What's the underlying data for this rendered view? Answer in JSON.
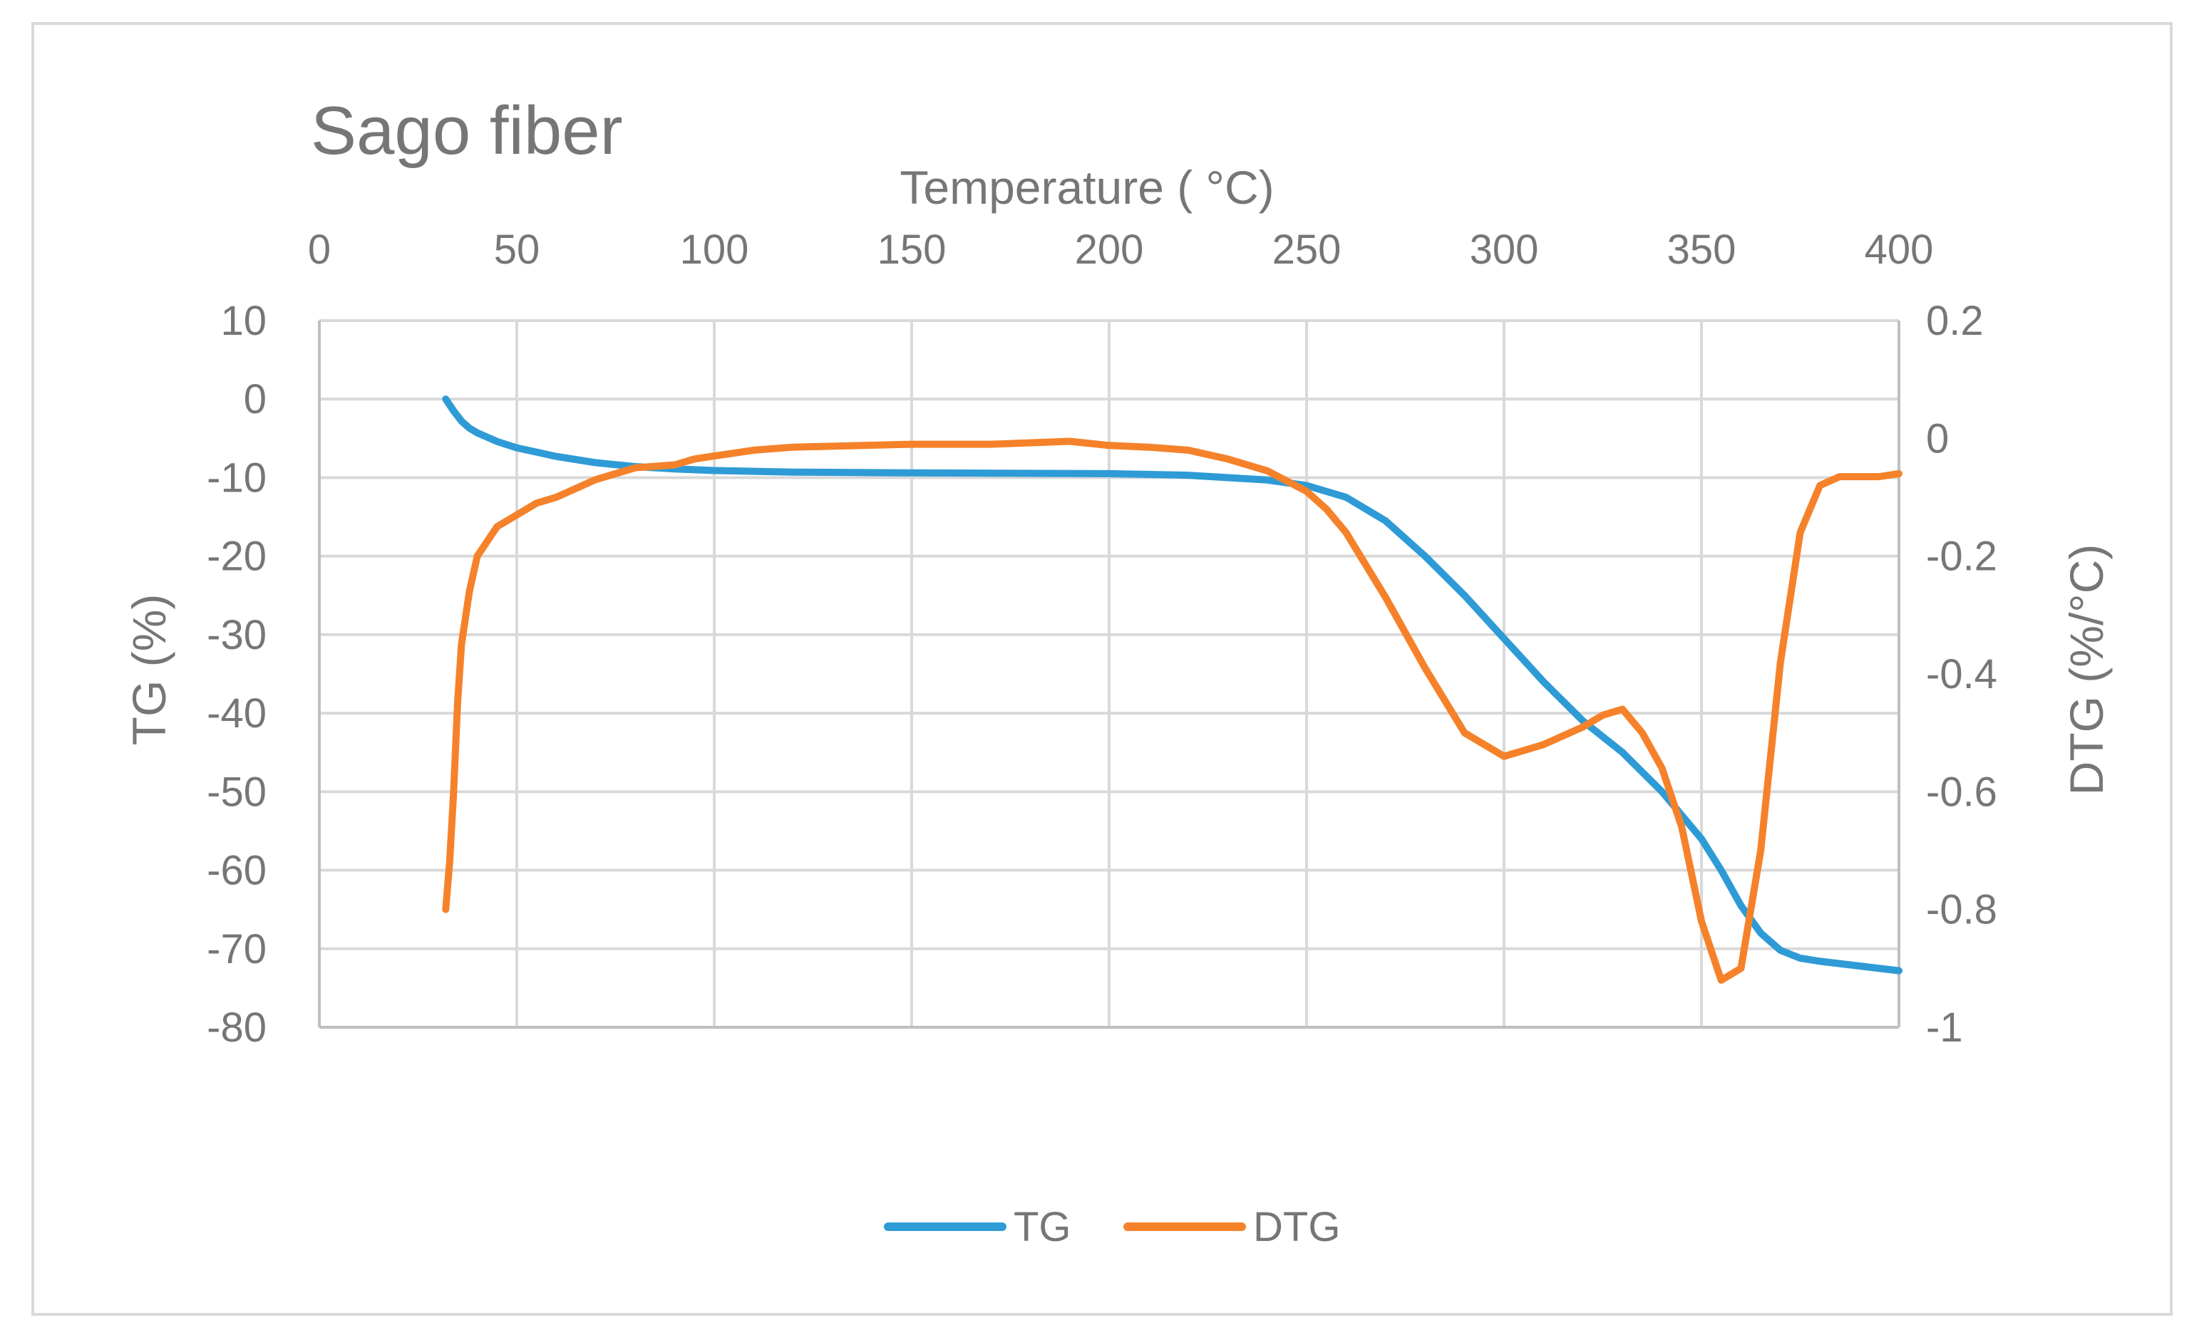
{
  "chart_data": {
    "type": "line",
    "title": "Sago fiber",
    "xlabel": "Temperature ( °C)",
    "ylabel": "TG (%)",
    "y2label": "DTG (%/°C)",
    "xlim": [
      0,
      400
    ],
    "ylim": [
      -80,
      10
    ],
    "y2lim": [
      -1,
      0.2
    ],
    "x_ticks": [
      "0",
      "50",
      "100",
      "150",
      "200",
      "250",
      "300",
      "350",
      "400"
    ],
    "x_tick_values": [
      0,
      50,
      100,
      150,
      200,
      250,
      300,
      350,
      400
    ],
    "y_ticks": [
      "10",
      "0",
      "-10",
      "-20",
      "-30",
      "-40",
      "-50",
      "-60",
      "-70",
      "-80"
    ],
    "y_tick_values": [
      10,
      0,
      -10,
      -20,
      -30,
      -40,
      -50,
      -60,
      -70,
      -80
    ],
    "y2_ticks": [
      "0.2",
      "0",
      "-0.2",
      "-0.4",
      "-0.6",
      "-0.8",
      "-1"
    ],
    "y2_tick_values": [
      0.2,
      0,
      -0.2,
      -0.4,
      -0.6,
      -0.8,
      -1
    ],
    "grid": true,
    "legend_position": "bottom",
    "series": [
      {
        "name": "TG",
        "axis": "left",
        "color": "#2E9BD6",
        "x": [
          32,
          34,
          36,
          38,
          40,
          45,
          50,
          60,
          70,
          80,
          90,
          100,
          120,
          150,
          200,
          220,
          240,
          250,
          260,
          270,
          280,
          290,
          300,
          310,
          320,
          330,
          340,
          350,
          355,
          360,
          365,
          370,
          375,
          380,
          390,
          400
        ],
        "y": [
          0,
          -1.5,
          -2.8,
          -3.7,
          -4.3,
          -5.4,
          -6.2,
          -7.3,
          -8.1,
          -8.6,
          -8.9,
          -9.1,
          -9.3,
          -9.4,
          -9.5,
          -9.7,
          -10.3,
          -11,
          -12.5,
          -15.5,
          -20,
          -25,
          -30.5,
          -36,
          -41,
          -45,
          -50,
          -56,
          -60,
          -64.5,
          -68,
          -70.2,
          -71.2,
          -71.6,
          -72.2,
          -72.8
        ]
      },
      {
        "name": "DTG",
        "axis": "right",
        "color": "#F5822A",
        "x": [
          32,
          33,
          34,
          35,
          36,
          38,
          40,
          45,
          50,
          55,
          60,
          70,
          80,
          90,
          95,
          100,
          110,
          120,
          150,
          170,
          190,
          200,
          210,
          220,
          230,
          240,
          250,
          255,
          260,
          270,
          280,
          290,
          300,
          305,
          310,
          320,
          325,
          330,
          335,
          340,
          345,
          350,
          355,
          360,
          365,
          370,
          375,
          380,
          385,
          390,
          395,
          400
        ],
        "y": [
          -0.8,
          -0.72,
          -0.6,
          -0.45,
          -0.35,
          -0.26,
          -0.2,
          -0.15,
          -0.13,
          -0.11,
          -0.1,
          -0.07,
          -0.05,
          -0.045,
          -0.035,
          -0.03,
          -0.02,
          -0.015,
          -0.01,
          -0.01,
          -0.005,
          -0.012,
          -0.015,
          -0.02,
          -0.035,
          -0.055,
          -0.09,
          -0.12,
          -0.16,
          -0.27,
          -0.39,
          -0.5,
          -0.54,
          -0.53,
          -0.52,
          -0.49,
          -0.47,
          -0.46,
          -0.5,
          -0.56,
          -0.66,
          -0.82,
          -0.92,
          -0.9,
          -0.7,
          -0.38,
          -0.16,
          -0.08,
          -0.065,
          -0.065,
          -0.065,
          -0.06
        ]
      }
    ]
  }
}
